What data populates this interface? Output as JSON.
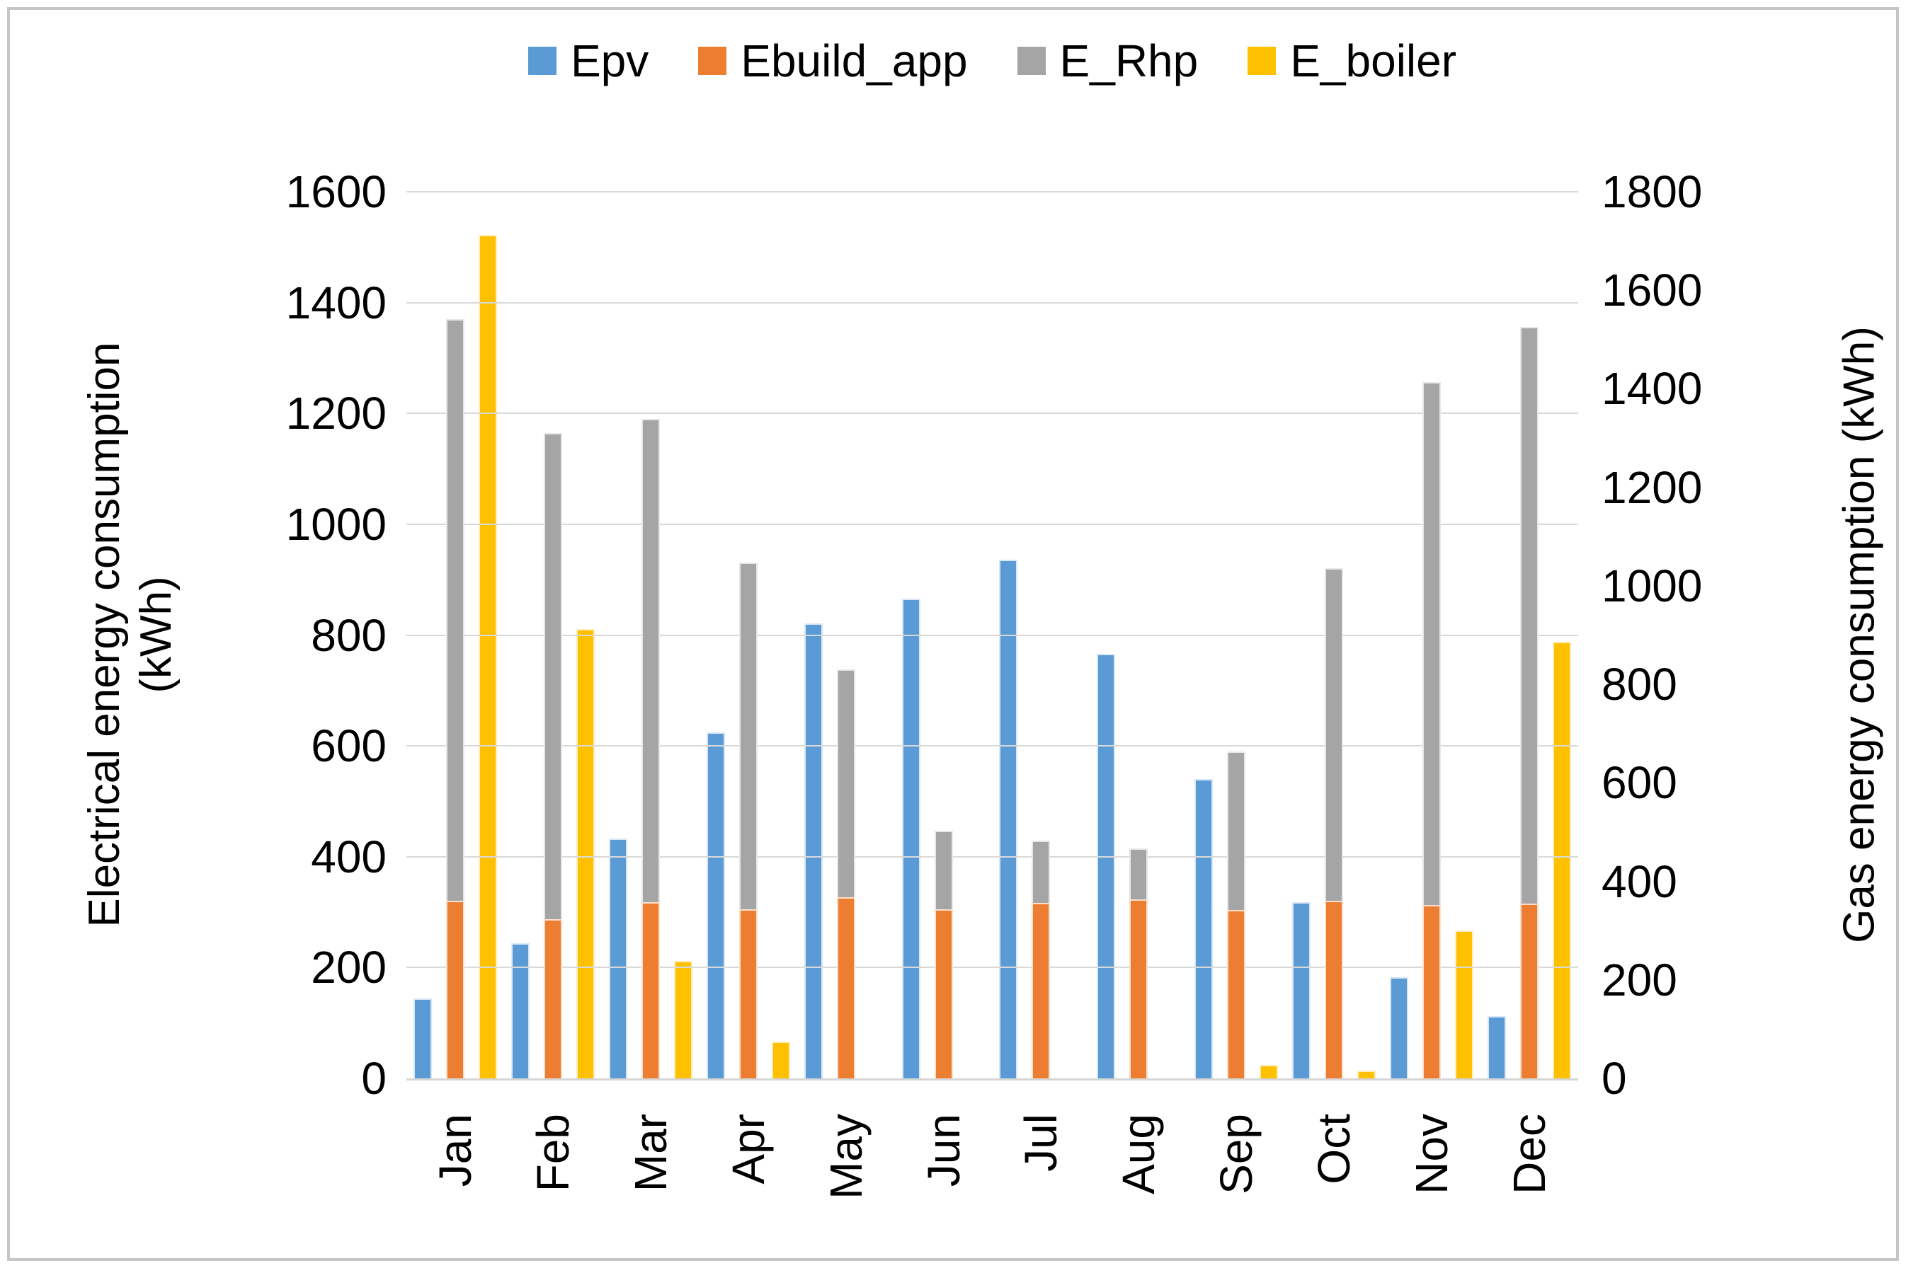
{
  "figure": {
    "background": "#ffffff",
    "border_color": "#c6c6c6",
    "gridline_color": "#d9d9d9",
    "axis_line_color": "#d6d6d6",
    "text_color": "#000000"
  },
  "chart_data": {
    "type": "bar",
    "title": "",
    "categories": [
      "Jan",
      "Feb",
      "Mar",
      "Apr",
      "May",
      "Jun",
      "Jul",
      "Aug",
      "Sep",
      "Oct",
      "Nov",
      "Dec"
    ],
    "series": [
      {
        "name": "Epv",
        "axis": "left",
        "color": "#5B9BD5",
        "edge_color": "#d9e7f6",
        "values": [
          142,
          241,
          430,
          622,
          819,
          863,
          933,
          764,
          537,
          315,
          180,
          110
        ]
      },
      {
        "name": "Ebuild_app",
        "axis": "left",
        "color": "#ED7D31",
        "edge_color": "#fae0cd",
        "values": [
          318,
          285,
          316,
          303,
          324,
          303,
          314,
          321,
          301,
          318,
          310,
          313
        ]
      },
      {
        "name": "E_Rhp",
        "axis": "left",
        "color": "#A5A5A5",
        "edge_color": "#e7e7e7",
        "values": [
          1367,
          1162,
          1187,
          928,
          736,
          445,
          427,
          412,
          588,
          918,
          1254,
          1354
        ]
      },
      {
        "name": "E_boiler",
        "axis": "right",
        "color": "#FFC000",
        "edge_color": "#ffedbd",
        "values": [
          1710,
          909,
          236,
          72,
          0,
          0,
          0,
          0,
          25,
          13,
          297,
          884
        ]
      }
    ],
    "left_axis": {
      "label": "Electrical energy consumption (kWh)",
      "min": 0,
      "max": 1600,
      "step": 200
    },
    "right_axis": {
      "label": "Gas energy consumption (kWh)",
      "min": 0,
      "max": 1800,
      "step": 200
    },
    "legend_position": "top",
    "grid": true
  }
}
